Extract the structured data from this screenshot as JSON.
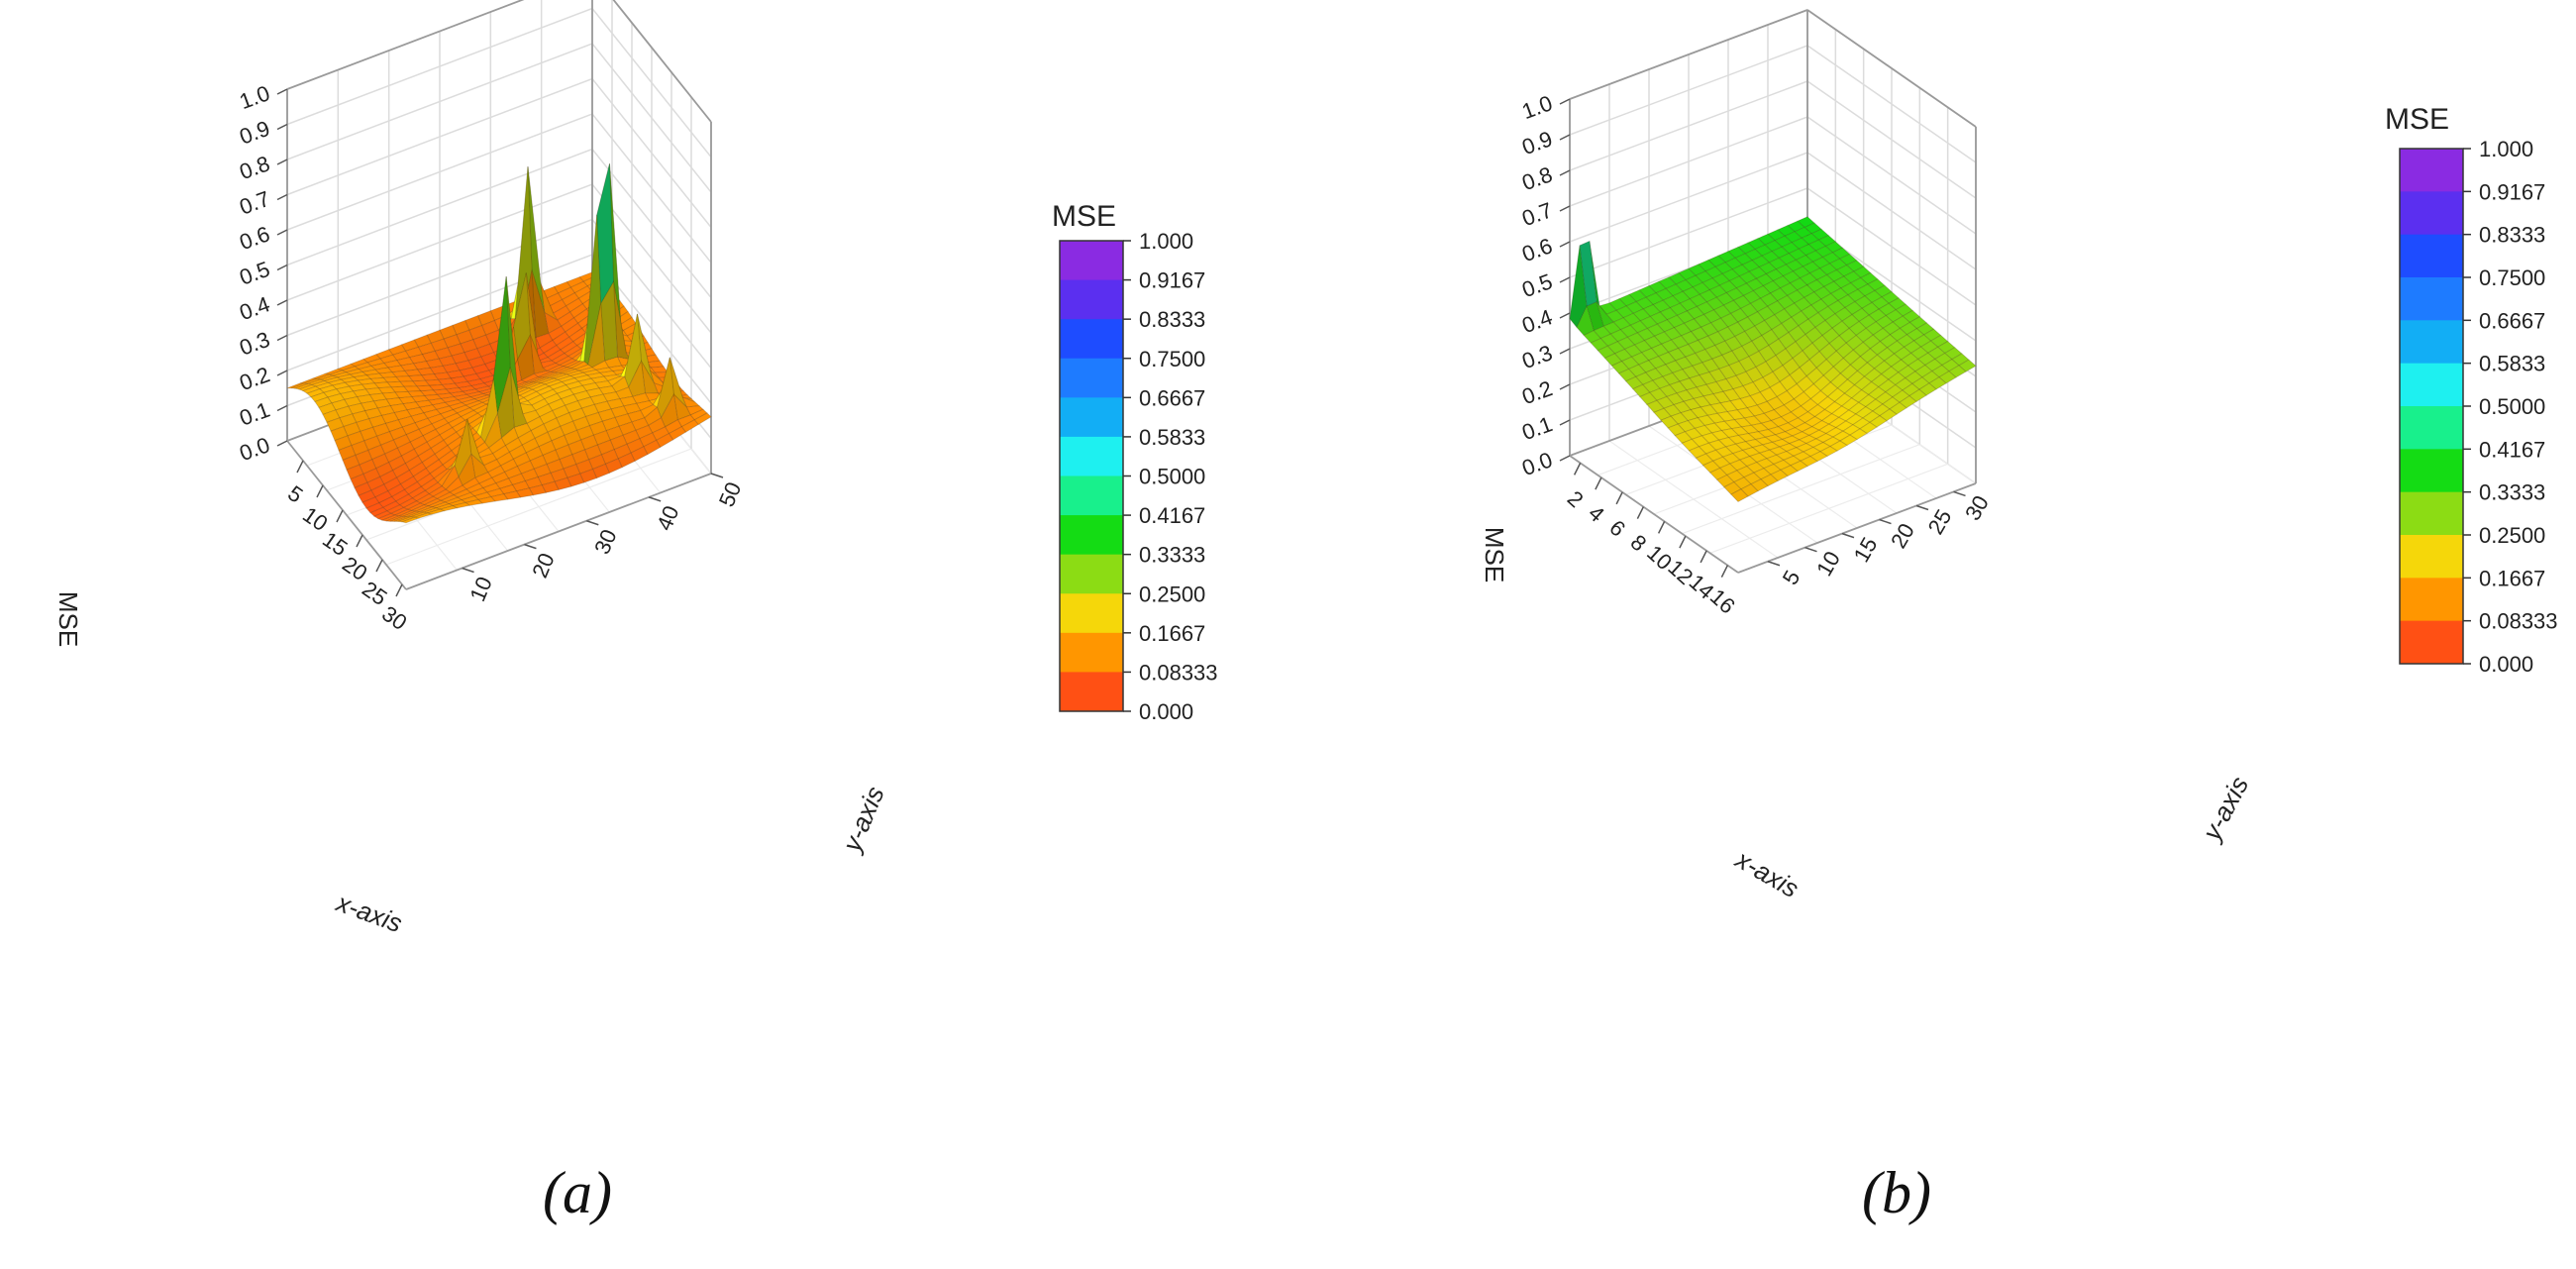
{
  "chart_data": [
    {
      "type": "surface3d",
      "panel_label": "(a)",
      "xlabel": "x-axis",
      "ylabel": "y-axis",
      "zlabel": "MSE",
      "x_range": [
        1,
        31
      ],
      "y_range": [
        1,
        50
      ],
      "z_range": [
        0,
        1.0
      ],
      "x_ticks": [
        "5",
        "10",
        "15",
        "20",
        "25",
        "30"
      ],
      "y_ticks": [
        "10",
        "20",
        "30",
        "40",
        "50"
      ],
      "z_ticks": [
        "0.0",
        "0.1",
        "0.2",
        "0.3",
        "0.4",
        "0.5",
        "0.6",
        "0.7",
        "0.8",
        "0.9",
        "1.0"
      ],
      "grid": true,
      "base_level": 0.15,
      "peaks": [
        {
          "x": 15,
          "y": 43,
          "z": 0.92
        },
        {
          "x": 4,
          "y": 38,
          "z": 0.62
        },
        {
          "x": 21,
          "y": 23,
          "z": 0.6
        },
        {
          "x": 10,
          "y": 33,
          "z": 0.5
        },
        {
          "x": 13,
          "y": 44,
          "z": 0.3
        },
        {
          "x": 22,
          "y": 44,
          "z": 0.35
        },
        {
          "x": 27,
          "y": 46,
          "z": 0.3
        },
        {
          "x": 24,
          "y": 15,
          "z": 0.3
        }
      ],
      "legend": {
        "title": "MSE",
        "levels": [
          "1.000",
          "0.9167",
          "0.8333",
          "0.7500",
          "0.6667",
          "0.5833",
          "0.5000",
          "0.4167",
          "0.3333",
          "0.2500",
          "0.1667",
          "0.08333",
          "0.000"
        ],
        "colors": [
          "#8a2be2",
          "#5b2ff0",
          "#1e4cff",
          "#1e7bff",
          "#12aef5",
          "#1ef0f0",
          "#18f08c",
          "#14dc14",
          "#8cdc14",
          "#f5d70a",
          "#ff9600",
          "#ff5014",
          "#ff1e1e"
        ]
      }
    },
    {
      "type": "surface3d",
      "panel_label": "(b)",
      "xlabel": "x-axis",
      "ylabel": "y-axis",
      "zlabel": "MSE",
      "x_range": [
        1,
        17
      ],
      "y_range": [
        1,
        33
      ],
      "z_range": [
        0,
        1.0
      ],
      "x_ticks": [
        "2",
        "4",
        "6",
        "8",
        "10",
        "12",
        "14",
        "16"
      ],
      "y_ticks": [
        "5",
        "10",
        "15",
        "20",
        "25",
        "30"
      ],
      "z_ticks": [
        "0.0",
        "0.1",
        "0.2",
        "0.3",
        "0.4",
        "0.5",
        "0.6",
        "0.7",
        "0.8",
        "0.9",
        "1.0"
      ],
      "grid": true,
      "corner_values": {
        "x_min_y_min": 0.38,
        "x_min_y_max": 0.42,
        "x_max_y_min": 0.2,
        "x_max_y_max": 0.33
      },
      "peaks": [
        {
          "x": 1,
          "y": 3,
          "z": 0.62
        }
      ],
      "legend": {
        "title": "MSE",
        "levels": [
          "1.000",
          "0.9167",
          "0.8333",
          "0.7500",
          "0.6667",
          "0.5833",
          "0.5000",
          "0.4167",
          "0.3333",
          "0.2500",
          "0.1667",
          "0.08333",
          "0.000"
        ],
        "colors": [
          "#8a2be2",
          "#5b2ff0",
          "#1e4cff",
          "#1e7bff",
          "#12aef5",
          "#1ef0f0",
          "#18f08c",
          "#14dc14",
          "#8cdc14",
          "#f5d70a",
          "#ff9600",
          "#ff5014",
          "#ff1e1e"
        ]
      }
    }
  ]
}
